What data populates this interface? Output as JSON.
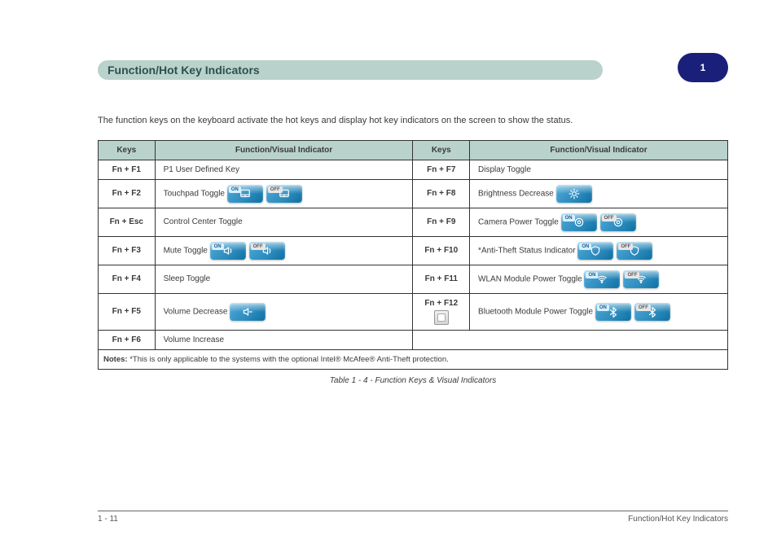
{
  "colors": {
    "bar_bg": "#b9d2cb",
    "pill_bg": "#1a1f7a",
    "pill_text": "#ffffff",
    "border": "#333333",
    "text": "#3a3a3a",
    "btn_gradient_start": "#4fa9d8",
    "btn_gradient_mid": "#2b8bbd",
    "btn_gradient_end": "#0d6fa1"
  },
  "title_bar": "Function/Hot Key Indicators",
  "page_badge": "1",
  "intro_text": "The function keys on the keyboard activate the hot keys and display hot key indicators on the screen to show the status.",
  "note_label": "Notes:",
  "note_text": "*This is only applicable to the systems with the optional Intel® McAfee® Anti-Theft protection.",
  "table": {
    "headers": [
      "Keys",
      "Function/Visual Indicator",
      "Keys",
      "Function/Visual Indicator"
    ],
    "col_widths": [
      "9%",
      "41%",
      "9%",
      "41%"
    ],
    "rows": [
      {
        "k1": "Fn + F1",
        "c1_text": "P1 User Defined Key",
        "c1_icons": null,
        "k2": "Fn + F7",
        "c2_text": "Display Toggle",
        "c2_icons": null
      },
      {
        "k1": "Fn + F2",
        "c1_text": "Touchpad Toggle",
        "c1_icons": {
          "type": "pair",
          "on_off": true,
          "glyph": "touchpad"
        },
        "k2": "Fn + F8",
        "c2_text": "Brightness Decrease",
        "c2_icons": {
          "type": "single",
          "glyph": "sun"
        }
      },
      {
        "k1": "Fn + Esc",
        "c1_text": "Control Center Toggle",
        "c1_icons": null,
        "k2": "Fn + F9",
        "c2_text": "Camera Power Toggle",
        "c2_icons": {
          "type": "pair",
          "on_off": true,
          "glyph": "camera"
        }
      },
      {
        "k1": "Fn + F3",
        "c1_text": "Mute Toggle",
        "c1_icons": {
          "type": "pair",
          "on_off": true,
          "glyph": "speaker"
        },
        "k2": "Fn + F10",
        "c2_text": "*Anti-Theft Status Indicator",
        "c2_icons": {
          "type": "pair",
          "on_off": true,
          "glyph": "shield"
        }
      },
      {
        "k1": "Fn + F4",
        "c1_text": "Sleep Toggle",
        "c1_icons": null,
        "k2": "Fn + F11",
        "c2_text": "WLAN Module Power Toggle",
        "c2_icons": {
          "type": "pair",
          "on_off": true,
          "glyph": "wifi"
        }
      },
      {
        "k1": "Fn + F5",
        "c1_text": "Volume Decrease",
        "c1_icons": {
          "type": "single",
          "glyph": "voldown"
        },
        "k2": "Fn + F12",
        "k2_icon": "square",
        "c2_text": "Bluetooth Module Power Toggle",
        "c2_icons": {
          "type": "pair",
          "on_off": true,
          "glyph": "bt"
        }
      },
      {
        "k1": "Fn + F6",
        "c1_text": "Volume Increase",
        "c1_icons": null,
        "k2": "",
        "c2_text": "",
        "c2_icons": null,
        "c2_colspan_merge": true
      }
    ],
    "caption": "Table 1 - 4 - Function Keys & Visual Indicators"
  },
  "footer_left": "1 - 11",
  "footer_right": "Function/Hot Key Indicators"
}
